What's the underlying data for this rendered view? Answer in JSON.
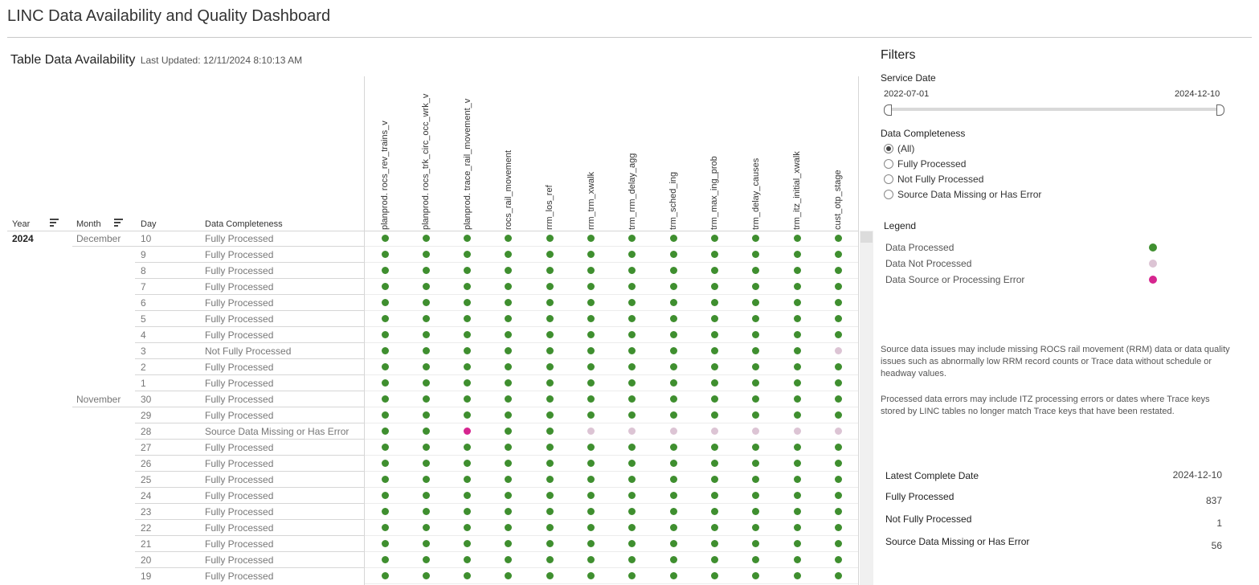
{
  "page": {
    "title": "LINC Data Availability and Quality Dashboard"
  },
  "table_section": {
    "title": "Table Data Availability",
    "last_updated": "Last Updated: 12/11/2024 8:10:13 AM",
    "headers": {
      "year": "Year",
      "month": "Month",
      "day": "Day",
      "completeness": "Data Completeness"
    },
    "table_columns": [
      "planprod. rocs_rev_trains_v",
      "planprod. rocs_trk_circ_occ_wrk_v",
      "planprod. trace_rail_movement_v",
      "rocs_rail_movement",
      "rrm_los_ref",
      "rrm_trm_xwalk",
      "trm_rrm_delay_agg",
      "trm_sched_ing",
      "trm_max_ing_prob",
      "trm_delay_causes",
      "trm_itz_initial_xwalk",
      "cust_otp_stage"
    ],
    "status_colors": {
      "P": "#3f8f2f",
      "N": "#dcc4d4",
      "E": "#d6258f"
    },
    "rows": [
      {
        "year": "2024",
        "month": "December",
        "day": "10",
        "completeness": "Fully Processed",
        "status": "PPPPPPPPPPPP"
      },
      {
        "year": "",
        "month": "",
        "day": "9",
        "completeness": "Fully Processed",
        "status": "PPPPPPPPPPPP"
      },
      {
        "year": "",
        "month": "",
        "day": "8",
        "completeness": "Fully Processed",
        "status": "PPPPPPPPPPPP"
      },
      {
        "year": "",
        "month": "",
        "day": "7",
        "completeness": "Fully Processed",
        "status": "PPPPPPPPPPPP"
      },
      {
        "year": "",
        "month": "",
        "day": "6",
        "completeness": "Fully Processed",
        "status": "PPPPPPPPPPPP"
      },
      {
        "year": "",
        "month": "",
        "day": "5",
        "completeness": "Fully Processed",
        "status": "PPPPPPPPPPPP"
      },
      {
        "year": "",
        "month": "",
        "day": "4",
        "completeness": "Fully Processed",
        "status": "PPPPPPPPPPPP"
      },
      {
        "year": "",
        "month": "",
        "day": "3",
        "completeness": "Not Fully Processed",
        "status": "PPPPPPPPPPPN"
      },
      {
        "year": "",
        "month": "",
        "day": "2",
        "completeness": "Fully Processed",
        "status": "PPPPPPPPPPPP"
      },
      {
        "year": "",
        "month": "",
        "day": "1",
        "completeness": "Fully Processed",
        "status": "PPPPPPPPPPPP"
      },
      {
        "year": "",
        "month": "November",
        "day": "30",
        "completeness": "Fully Processed",
        "status": "PPPPPPPPPPPP"
      },
      {
        "year": "",
        "month": "",
        "day": "29",
        "completeness": "Fully Processed",
        "status": "PPPPPPPPPPPP"
      },
      {
        "year": "",
        "month": "",
        "day": "28",
        "completeness": "Source Data Missing or Has Error",
        "status": "PPEPPNNNNNNN"
      },
      {
        "year": "",
        "month": "",
        "day": "27",
        "completeness": "Fully Processed",
        "status": "PPPPPPPPPPPP"
      },
      {
        "year": "",
        "month": "",
        "day": "26",
        "completeness": "Fully Processed",
        "status": "PPPPPPPPPPPP"
      },
      {
        "year": "",
        "month": "",
        "day": "25",
        "completeness": "Fully Processed",
        "status": "PPPPPPPPPPPP"
      },
      {
        "year": "",
        "month": "",
        "day": "24",
        "completeness": "Fully Processed",
        "status": "PPPPPPPPPPPP"
      },
      {
        "year": "",
        "month": "",
        "day": "23",
        "completeness": "Fully Processed",
        "status": "PPPPPPPPPPPP"
      },
      {
        "year": "",
        "month": "",
        "day": "22",
        "completeness": "Fully Processed",
        "status": "PPPPPPPPPPPP"
      },
      {
        "year": "",
        "month": "",
        "day": "21",
        "completeness": "Fully Processed",
        "status": "PPPPPPPPPPPP"
      },
      {
        "year": "",
        "month": "",
        "day": "20",
        "completeness": "Fully Processed",
        "status": "PPPPPPPPPPPP"
      },
      {
        "year": "",
        "month": "",
        "day": "19",
        "completeness": "Fully Processed",
        "status": "PPPPPPPPPPPP"
      }
    ]
  },
  "filters": {
    "title": "Filters",
    "service_date": {
      "label": "Service Date",
      "start": "2022-07-01",
      "end": "2024-12-10"
    },
    "completeness": {
      "label": "Data Completeness",
      "options": [
        "(All)",
        "Fully Processed",
        "Not Fully Processed",
        "Source Data Missing or Has Error"
      ],
      "selected": "(All)"
    }
  },
  "legend": {
    "title": "Legend",
    "items": [
      {
        "label": "Data Processed",
        "color": "#3f8f2f"
      },
      {
        "label": "Data Not Processed",
        "color": "#dcc4d4"
      },
      {
        "label": "Data Source or Processing Error",
        "color": "#d6258f"
      }
    ]
  },
  "notes": {
    "source_issues": "Source data issues may include missing ROCS rail movement (RRM) data or data quality issues such as abnormally low RRM record counts or Trace data without schedule or headway values.",
    "processing_errors": "Processed data errors may include ITZ processing errors or dates where Trace keys stored by LINC tables no longer match Trace keys that have been restated."
  },
  "summary": {
    "latest_label": "Latest Complete Date",
    "latest_value": "2024-12-10",
    "fully_label": "Fully Processed",
    "fully_value": "837",
    "not_fully_label": "Not Fully Processed",
    "not_fully_value": "1",
    "source_label": "Source Data Missing or Has Error",
    "source_value": "56"
  }
}
